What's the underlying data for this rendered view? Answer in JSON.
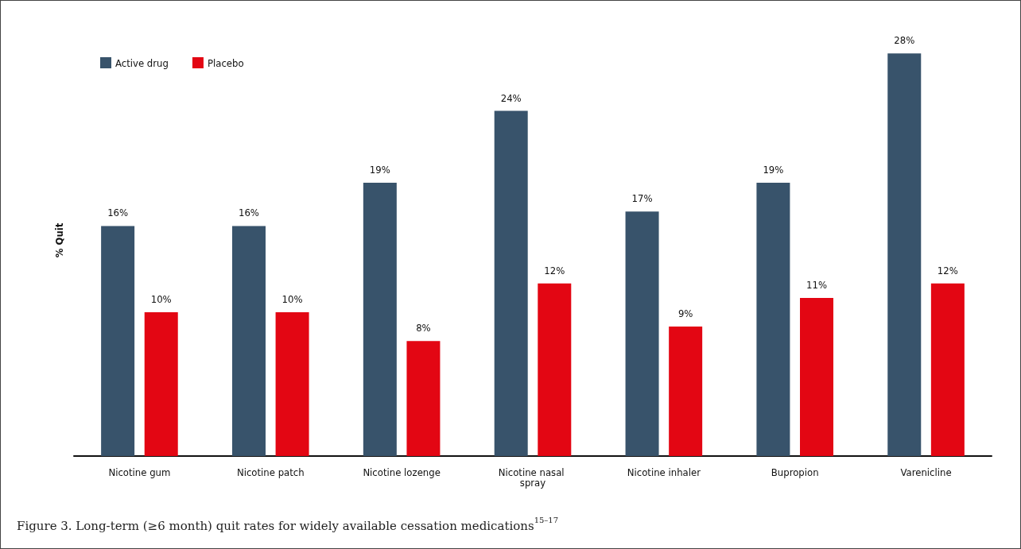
{
  "chart_data": {
    "type": "bar",
    "ylabel": "% Quit",
    "categories": [
      "Nicotine gum",
      "Nicotine patch",
      "Nicotine lozenge",
      "Nicotine nasal spray",
      "Nicotine inhaler",
      "Bupropion",
      "Varenicline"
    ],
    "series": [
      {
        "name": "Active drug",
        "color": "#38536b",
        "values": [
          16,
          16,
          19,
          24,
          17,
          19,
          28
        ],
        "value_labels": [
          "16%",
          "16%",
          "19%",
          "24%",
          "17%",
          "19%",
          "28%"
        ]
      },
      {
        "name": "Placebo",
        "color": "#e30613",
        "values": [
          10,
          10,
          8,
          12,
          9,
          11,
          12
        ],
        "value_labels": [
          "10%",
          "10%",
          "8%",
          "12%",
          "9%",
          "11%",
          "12%"
        ]
      }
    ],
    "tick_labels": "x",
    "grid": false,
    "legend": "top left",
    "annotations": [
      "Figure 3. Long-term (≥6 month) quit rates for widely available cessation medications$^{15–17}$"
    ]
  }
}
